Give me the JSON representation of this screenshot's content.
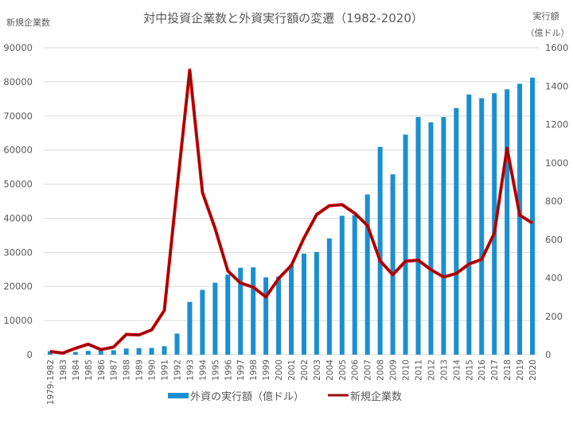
{
  "chart_data": {
    "type": "bar+line",
    "title": "対中投資企業数と外資実行額の変遷（1982-2020）",
    "y_left_label": "新規企業数",
    "y_right_label": "実行額",
    "y_right_unit": "（億ドル）",
    "y_left_lim": [
      0,
      90000
    ],
    "y_left_ticks": [
      0,
      10000,
      20000,
      30000,
      40000,
      50000,
      60000,
      70000,
      80000,
      90000
    ],
    "y_right_lim": [
      0,
      1600
    ],
    "y_right_ticks": [
      0,
      200,
      400,
      600,
      800,
      1000,
      1200,
      1400,
      1600
    ],
    "grid": true,
    "legend_position": "bottom",
    "categories": [
      "1979-1982",
      "1983",
      "1984",
      "1985",
      "1986",
      "1987",
      "1988",
      "1989",
      "1990",
      "1991",
      "1992",
      "1993",
      "1994",
      "1995",
      "1996",
      "1997",
      "1998",
      "1999",
      "2000",
      "2001",
      "2002",
      "2003",
      "2004",
      "2005",
      "2006",
      "2007",
      "2008",
      "2009",
      "2010",
      "2011",
      "2012",
      "2013",
      "2014",
      "2015",
      "2016",
      "2017",
      "2018",
      "2019",
      "2020"
    ],
    "series": [
      {
        "name": "外資の実行額（億ドル）",
        "type": "bar",
        "axis": "right",
        "color": "#1a8fd0",
        "values": [
          18,
          9,
          14,
          20,
          22,
          23,
          32,
          34,
          35,
          44,
          110,
          275,
          338,
          375,
          417,
          453,
          455,
          403,
          407,
          469,
          527,
          535,
          606,
          724,
          727,
          835,
          1083,
          940,
          1147,
          1239,
          1211,
          1239,
          1285,
          1356,
          1337,
          1363,
          1383,
          1412,
          1444
        ]
      },
      {
        "name": "新規企業数",
        "type": "line",
        "axis": "left",
        "color": "#c00000",
        "values": [
          922,
          470,
          1856,
          3073,
          1498,
          2233,
          5945,
          5779,
          7273,
          12978,
          48764,
          83437,
          47549,
          37011,
          24556,
          21001,
          19799,
          16918,
          22347,
          26140,
          34171,
          41081,
          43664,
          44001,
          41473,
          37871,
          27514,
          23435,
          27406,
          27712,
          24925,
          22773,
          23778,
          26575,
          27900,
          35652,
          60533,
          40888,
          38570
        ]
      }
    ]
  }
}
